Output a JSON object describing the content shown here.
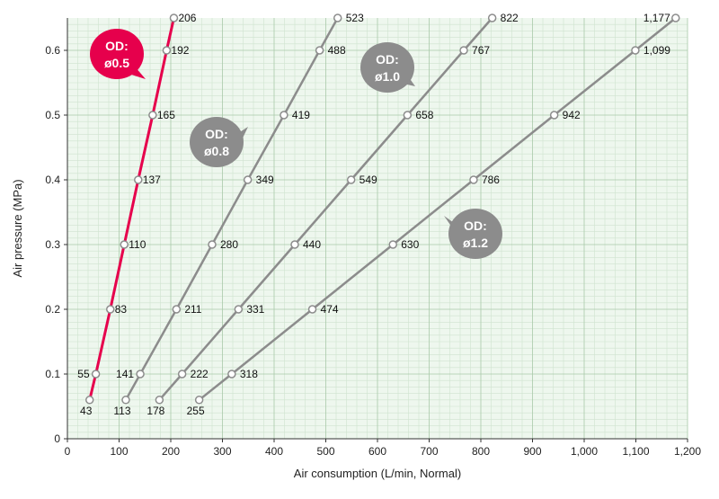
{
  "chart_data": {
    "type": "line",
    "xlabel": "Air consumption (L/min, Normal)",
    "ylabel": "Air pressure (MPa)",
    "xlim": [
      0,
      1200
    ],
    "ylim": [
      0,
      0.65
    ],
    "x_ticks": [
      0,
      100,
      200,
      300,
      400,
      500,
      600,
      700,
      800,
      900,
      1000,
      1100,
      1200
    ],
    "x_tick_labels": [
      "0",
      "100",
      "200",
      "300",
      "400",
      "500",
      "600",
      "700",
      "800",
      "900",
      "1,000",
      "1,100",
      "1,200"
    ],
    "y_ticks": [
      0,
      0.1,
      0.2,
      0.3,
      0.4,
      0.5,
      0.6
    ],
    "y_tick_labels": [
      "0",
      "0.1",
      "0.2",
      "0.3",
      "0.4",
      "0.5",
      "0.6"
    ],
    "grid": true,
    "y": [
      0.06,
      0.1,
      0.2,
      0.3,
      0.4,
      0.5,
      0.6,
      0.65
    ],
    "series": [
      {
        "od_line1": "OD:",
        "od_line2": "ø0.5",
        "color": "#e6004c",
        "x": [
          43,
          55,
          83,
          110,
          137,
          165,
          192,
          206
        ],
        "labels": [
          "43",
          "55",
          "83",
          "110",
          "137",
          "165",
          "192",
          "206"
        ]
      },
      {
        "od_line1": "OD:",
        "od_line2": "ø0.8",
        "color": "#8c8c8c",
        "x": [
          113,
          141,
          211,
          280,
          349,
          419,
          488,
          523
        ],
        "labels": [
          "113",
          "141",
          "211",
          "280",
          "349",
          "419",
          "488",
          "523"
        ]
      },
      {
        "od_line1": "OD:",
        "od_line2": "ø1.0",
        "color": "#8c8c8c",
        "x": [
          178,
          222,
          331,
          440,
          549,
          658,
          767,
          822
        ],
        "labels": [
          "178",
          "222",
          "331",
          "440",
          "549",
          "658",
          "767",
          "822"
        ]
      },
      {
        "od_line1": "OD:",
        "od_line2": "ø1.2",
        "color": "#8c8c8c",
        "x": [
          255,
          318,
          474,
          630,
          786,
          942,
          1099,
          1177
        ],
        "labels": [
          "255",
          "318",
          "474",
          "630",
          "786",
          "942",
          "1,099",
          "1,177"
        ]
      }
    ]
  }
}
